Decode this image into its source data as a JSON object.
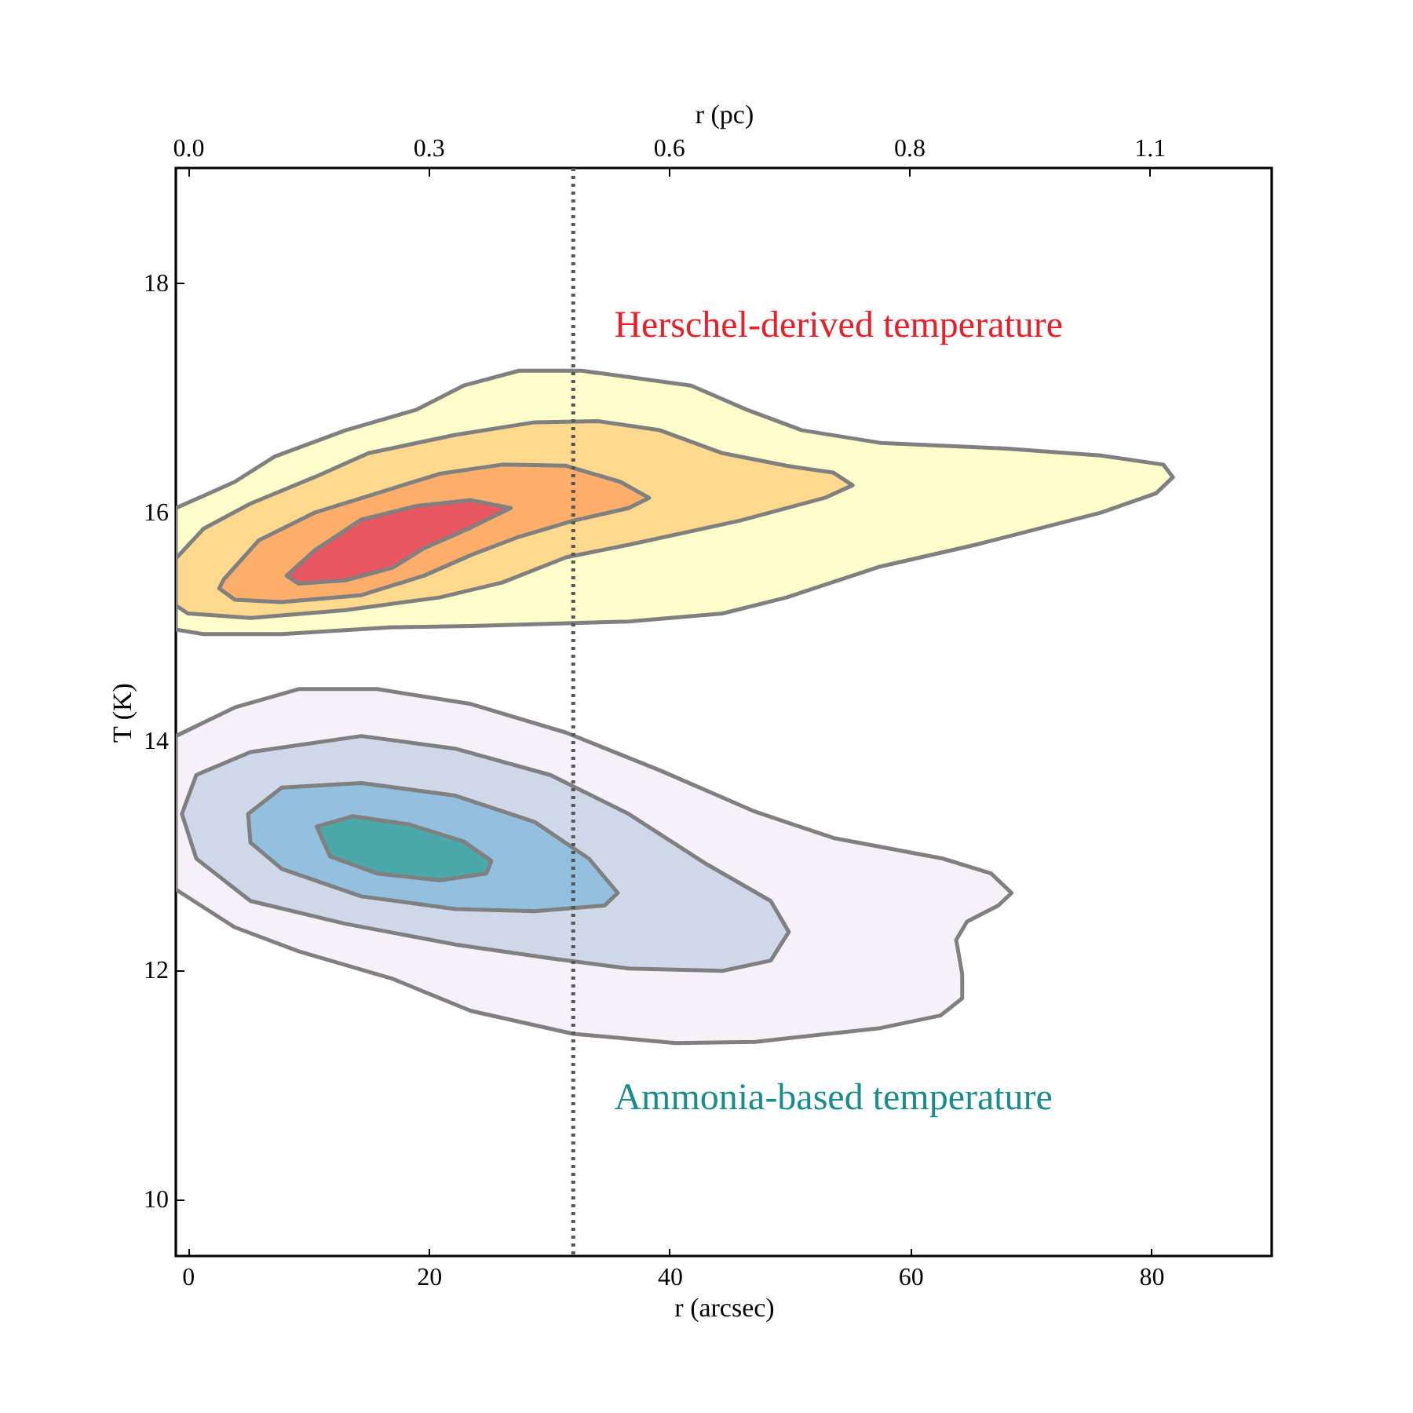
{
  "chart_data": {
    "type": "area",
    "xlabel": "r (arcsec)",
    "ylabel": "T (K)",
    "x2label": "r (pc)",
    "xlim": [
      -1,
      90
    ],
    "xticks": [
      0,
      20,
      40,
      60,
      80
    ],
    "ylim": [
      9.5,
      19
    ],
    "yticks": [
      10,
      12,
      14,
      16,
      18
    ],
    "x2lim": [
      -0.014,
      1.24
    ],
    "x2ticks": [
      {
        "value": 0,
        "label": "0.0"
      },
      {
        "value": 0.275,
        "label": "0.3"
      },
      {
        "value": 0.55,
        "label": "0.6"
      },
      {
        "value": 0.825,
        "label": "0.8"
      },
      {
        "value": 1.1,
        "label": "1.1"
      }
    ],
    "grid": false,
    "marker": "none",
    "line_style": "solid",
    "annotations": [
      "Herschel-derived temperature",
      "Ammonia-based temperature"
    ],
    "ref_lines": [
      {
        "axis": "x",
        "value": 32,
        "label": null,
        "color": "#555555",
        "line_style": "dotted"
      }
    ],
    "series": [
      {
        "color": "#ffffcc",
        "x": [
          -1.0,
          3.9,
          7.2,
          13.1,
          19.0,
          22.9,
          27.5,
          32.7,
          41.8,
          46.4,
          51.0,
          57.5,
          68.0,
          75.8,
          81.0,
          81.8,
          80.4,
          75.8,
          65.4,
          57.5,
          49.7,
          44.4,
          36.6,
          23.5,
          17.0,
          7.8,
          1.3,
          -1.0
        ],
        "values": [
          16.03,
          16.26,
          16.48,
          16.71,
          16.89,
          17.1,
          17.23,
          17.23,
          17.1,
          16.89,
          16.71,
          16.6,
          16.55,
          16.49,
          16.41,
          16.3,
          16.16,
          15.99,
          15.71,
          15.52,
          15.25,
          15.11,
          15.04,
          15.0,
          14.99,
          14.93,
          14.93,
          14.97
        ]
      },
      {
        "color": "#fed98e",
        "x": [
          -1.0,
          1.3,
          5.2,
          10.5,
          15.0,
          22.2,
          28.8,
          34.0,
          39.2,
          44.4,
          49.7,
          53.6,
          55.2,
          52.9,
          45.8,
          36.6,
          31.4,
          26.1,
          20.9,
          13.1,
          5.2,
          0.0,
          -1.0
        ],
        "values": [
          15.59,
          15.85,
          16.07,
          16.3,
          16.51,
          16.67,
          16.78,
          16.79,
          16.71,
          16.51,
          16.4,
          16.34,
          16.23,
          16.12,
          15.92,
          15.71,
          15.6,
          15.38,
          15.25,
          15.14,
          15.07,
          15.11,
          15.18
        ]
      },
      {
        "color": "#fdae6b",
        "x": [
          3.0,
          5.9,
          10.5,
          15.7,
          20.9,
          26.1,
          31.4,
          35.9,
          38.3,
          36.6,
          32.0,
          27.5,
          23.5,
          19.6,
          14.4,
          7.8,
          3.9,
          2.6
        ],
        "values": [
          15.41,
          15.75,
          15.99,
          16.16,
          16.33,
          16.41,
          16.4,
          16.26,
          16.12,
          16.03,
          15.92,
          15.78,
          15.62,
          15.44,
          15.27,
          15.21,
          15.23,
          15.33
        ]
      },
      {
        "color": "#e8575f",
        "x": [
          8.2,
          10.5,
          14.4,
          19.0,
          23.5,
          26.8,
          23.5,
          19.6,
          17.0,
          13.1,
          9.2
        ],
        "values": [
          15.44,
          15.66,
          15.93,
          16.05,
          16.1,
          16.03,
          15.86,
          15.68,
          15.51,
          15.4,
          15.37
        ]
      },
      {
        "color": "#f6f1f8",
        "x": [
          -1.0,
          3.9,
          9.2,
          15.7,
          23.5,
          31.4,
          39.2,
          47.1,
          53.6,
          62.7,
          66.7,
          68.4,
          67.3,
          64.7,
          63.8,
          64.3,
          64.3,
          62.5,
          57.5,
          47.1,
          40.5,
          32.0,
          23.5,
          17.0,
          9.2,
          3.9,
          -1.0
        ],
        "values": [
          14.04,
          14.29,
          14.45,
          14.45,
          14.32,
          14.07,
          13.74,
          13.38,
          13.15,
          12.97,
          12.84,
          12.67,
          12.56,
          12.42,
          12.26,
          11.96,
          11.75,
          11.6,
          11.49,
          11.37,
          11.36,
          11.44,
          11.64,
          11.92,
          12.16,
          12.37,
          12.7
        ]
      },
      {
        "color": "#ced8e8",
        "x": [
          0.7,
          5.2,
          14.4,
          22.2,
          30.1,
          36.6,
          43.1,
          48.4,
          49.9,
          48.4,
          44.4,
          36.6,
          30.1,
          22.2,
          13.1,
          5.2,
          0.7,
          -0.5
        ],
        "values": [
          13.7,
          13.9,
          14.04,
          13.93,
          13.7,
          13.36,
          12.92,
          12.6,
          12.33,
          12.08,
          11.99,
          12.01,
          12.1,
          12.22,
          12.4,
          12.6,
          12.97,
          13.36
        ]
      },
      {
        "color": "#92c0de",
        "x": [
          5.0,
          7.8,
          14.4,
          22.2,
          28.8,
          33.3,
          35.7,
          34.6,
          28.8,
          22.2,
          14.4,
          7.8,
          5.2
        ],
        "values": [
          13.36,
          13.59,
          13.63,
          13.52,
          13.29,
          12.97,
          12.67,
          12.56,
          12.51,
          12.53,
          12.64,
          12.88,
          13.11
        ]
      },
      {
        "color": "#4aa8aa",
        "x": [
          10.7,
          13.7,
          18.3,
          22.9,
          25.2,
          24.8,
          20.9,
          15.7,
          11.8
        ],
        "values": [
          13.25,
          13.34,
          13.27,
          13.12,
          12.95,
          12.84,
          12.78,
          12.84,
          12.99
        ]
      }
    ]
  }
}
